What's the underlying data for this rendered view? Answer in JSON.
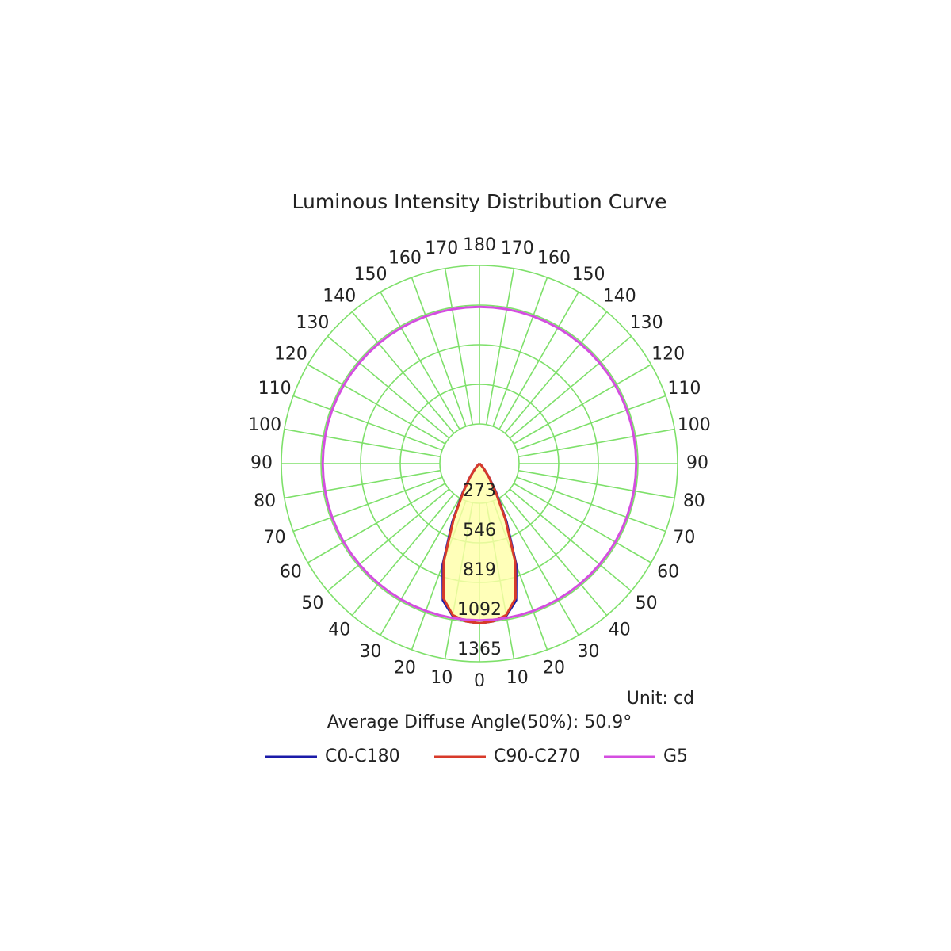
{
  "chart_data": {
    "type": "polar",
    "title": "Luminous Intensity Distribution Curve",
    "unit_label": "Unit: cd",
    "annotation": "Average Diffuse Angle(50%): 50.9°",
    "angles": [
      0,
      5,
      10,
      15,
      20,
      25,
      30,
      35,
      40,
      45,
      50,
      55,
      60,
      65,
      70,
      75,
      80,
      85,
      90,
      95,
      100,
      105,
      110,
      115,
      120,
      125,
      130,
      135,
      140,
      145,
      150,
      155,
      160,
      165,
      170,
      175,
      180
    ],
    "angle_ticks": [
      0,
      10,
      20,
      30,
      40,
      50,
      60,
      70,
      80,
      90,
      100,
      110,
      120,
      130,
      140,
      150,
      160,
      170,
      180
    ],
    "rlim": [
      0,
      1365
    ],
    "rticks": [
      273,
      546,
      819,
      1092,
      1365
    ],
    "grid": true,
    "grid_color": "#7ee06a",
    "fill_color": "#ffffa8",
    "series": [
      {
        "name": "C0-C180",
        "color": "#1a1aa8",
        "values": [
          1100,
          1090,
          1065,
          975,
          740,
          440,
          230,
          115,
          50,
          20,
          5,
          0,
          0,
          0,
          0,
          0,
          0,
          0,
          0,
          0,
          0,
          0,
          0,
          0,
          0,
          0,
          0,
          0,
          0,
          0,
          0,
          0,
          0,
          0,
          0,
          0,
          0
        ]
      },
      {
        "name": "C90-C270",
        "color": "#d83a2a",
        "values": [
          1100,
          1090,
          1060,
          960,
          720,
          420,
          220,
          110,
          50,
          20,
          5,
          0,
          0,
          0,
          0,
          0,
          0,
          0,
          0,
          0,
          0,
          0,
          0,
          0,
          0,
          0,
          0,
          0,
          0,
          0,
          0,
          0,
          0,
          0,
          0,
          0,
          0
        ]
      },
      {
        "name": "G5",
        "color": "#d44ee0",
        "values": [
          1080,
          1080,
          1080,
          1080,
          1080,
          1080,
          1080,
          1080,
          1080,
          1080,
          1080,
          1080,
          1080,
          1080,
          1080,
          1080,
          1080,
          1080,
          1080,
          1080,
          1080,
          1080,
          1080,
          1080,
          1080,
          1080,
          1080,
          1080,
          1080,
          1080,
          1080,
          1080,
          1080,
          1080,
          1080,
          1080,
          1080
        ]
      }
    ]
  }
}
